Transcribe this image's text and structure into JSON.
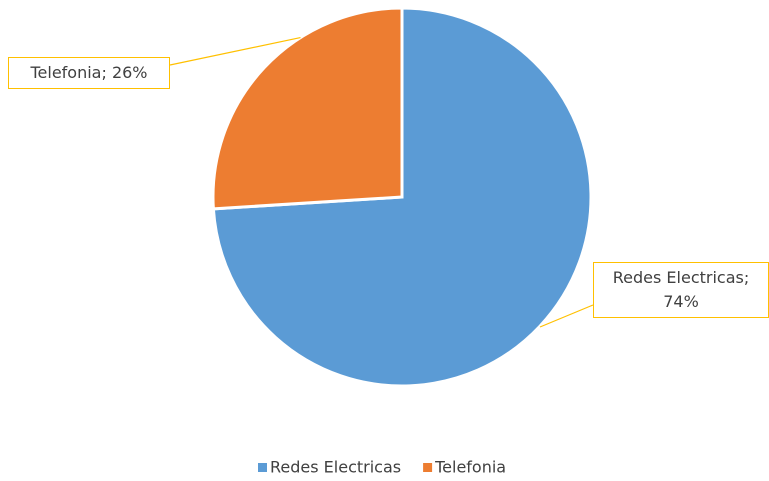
{
  "chart_data": {
    "type": "pie",
    "categories": [
      "Redes Electricas",
      "Telefonia"
    ],
    "values": [
      74,
      26
    ],
    "value_labels": [
      "Redes Electricas; 74%",
      "Telefonia; 26%"
    ],
    "colors": [
      "#5B9BD5",
      "#ED7D31"
    ],
    "legend": "bottom"
  }
}
